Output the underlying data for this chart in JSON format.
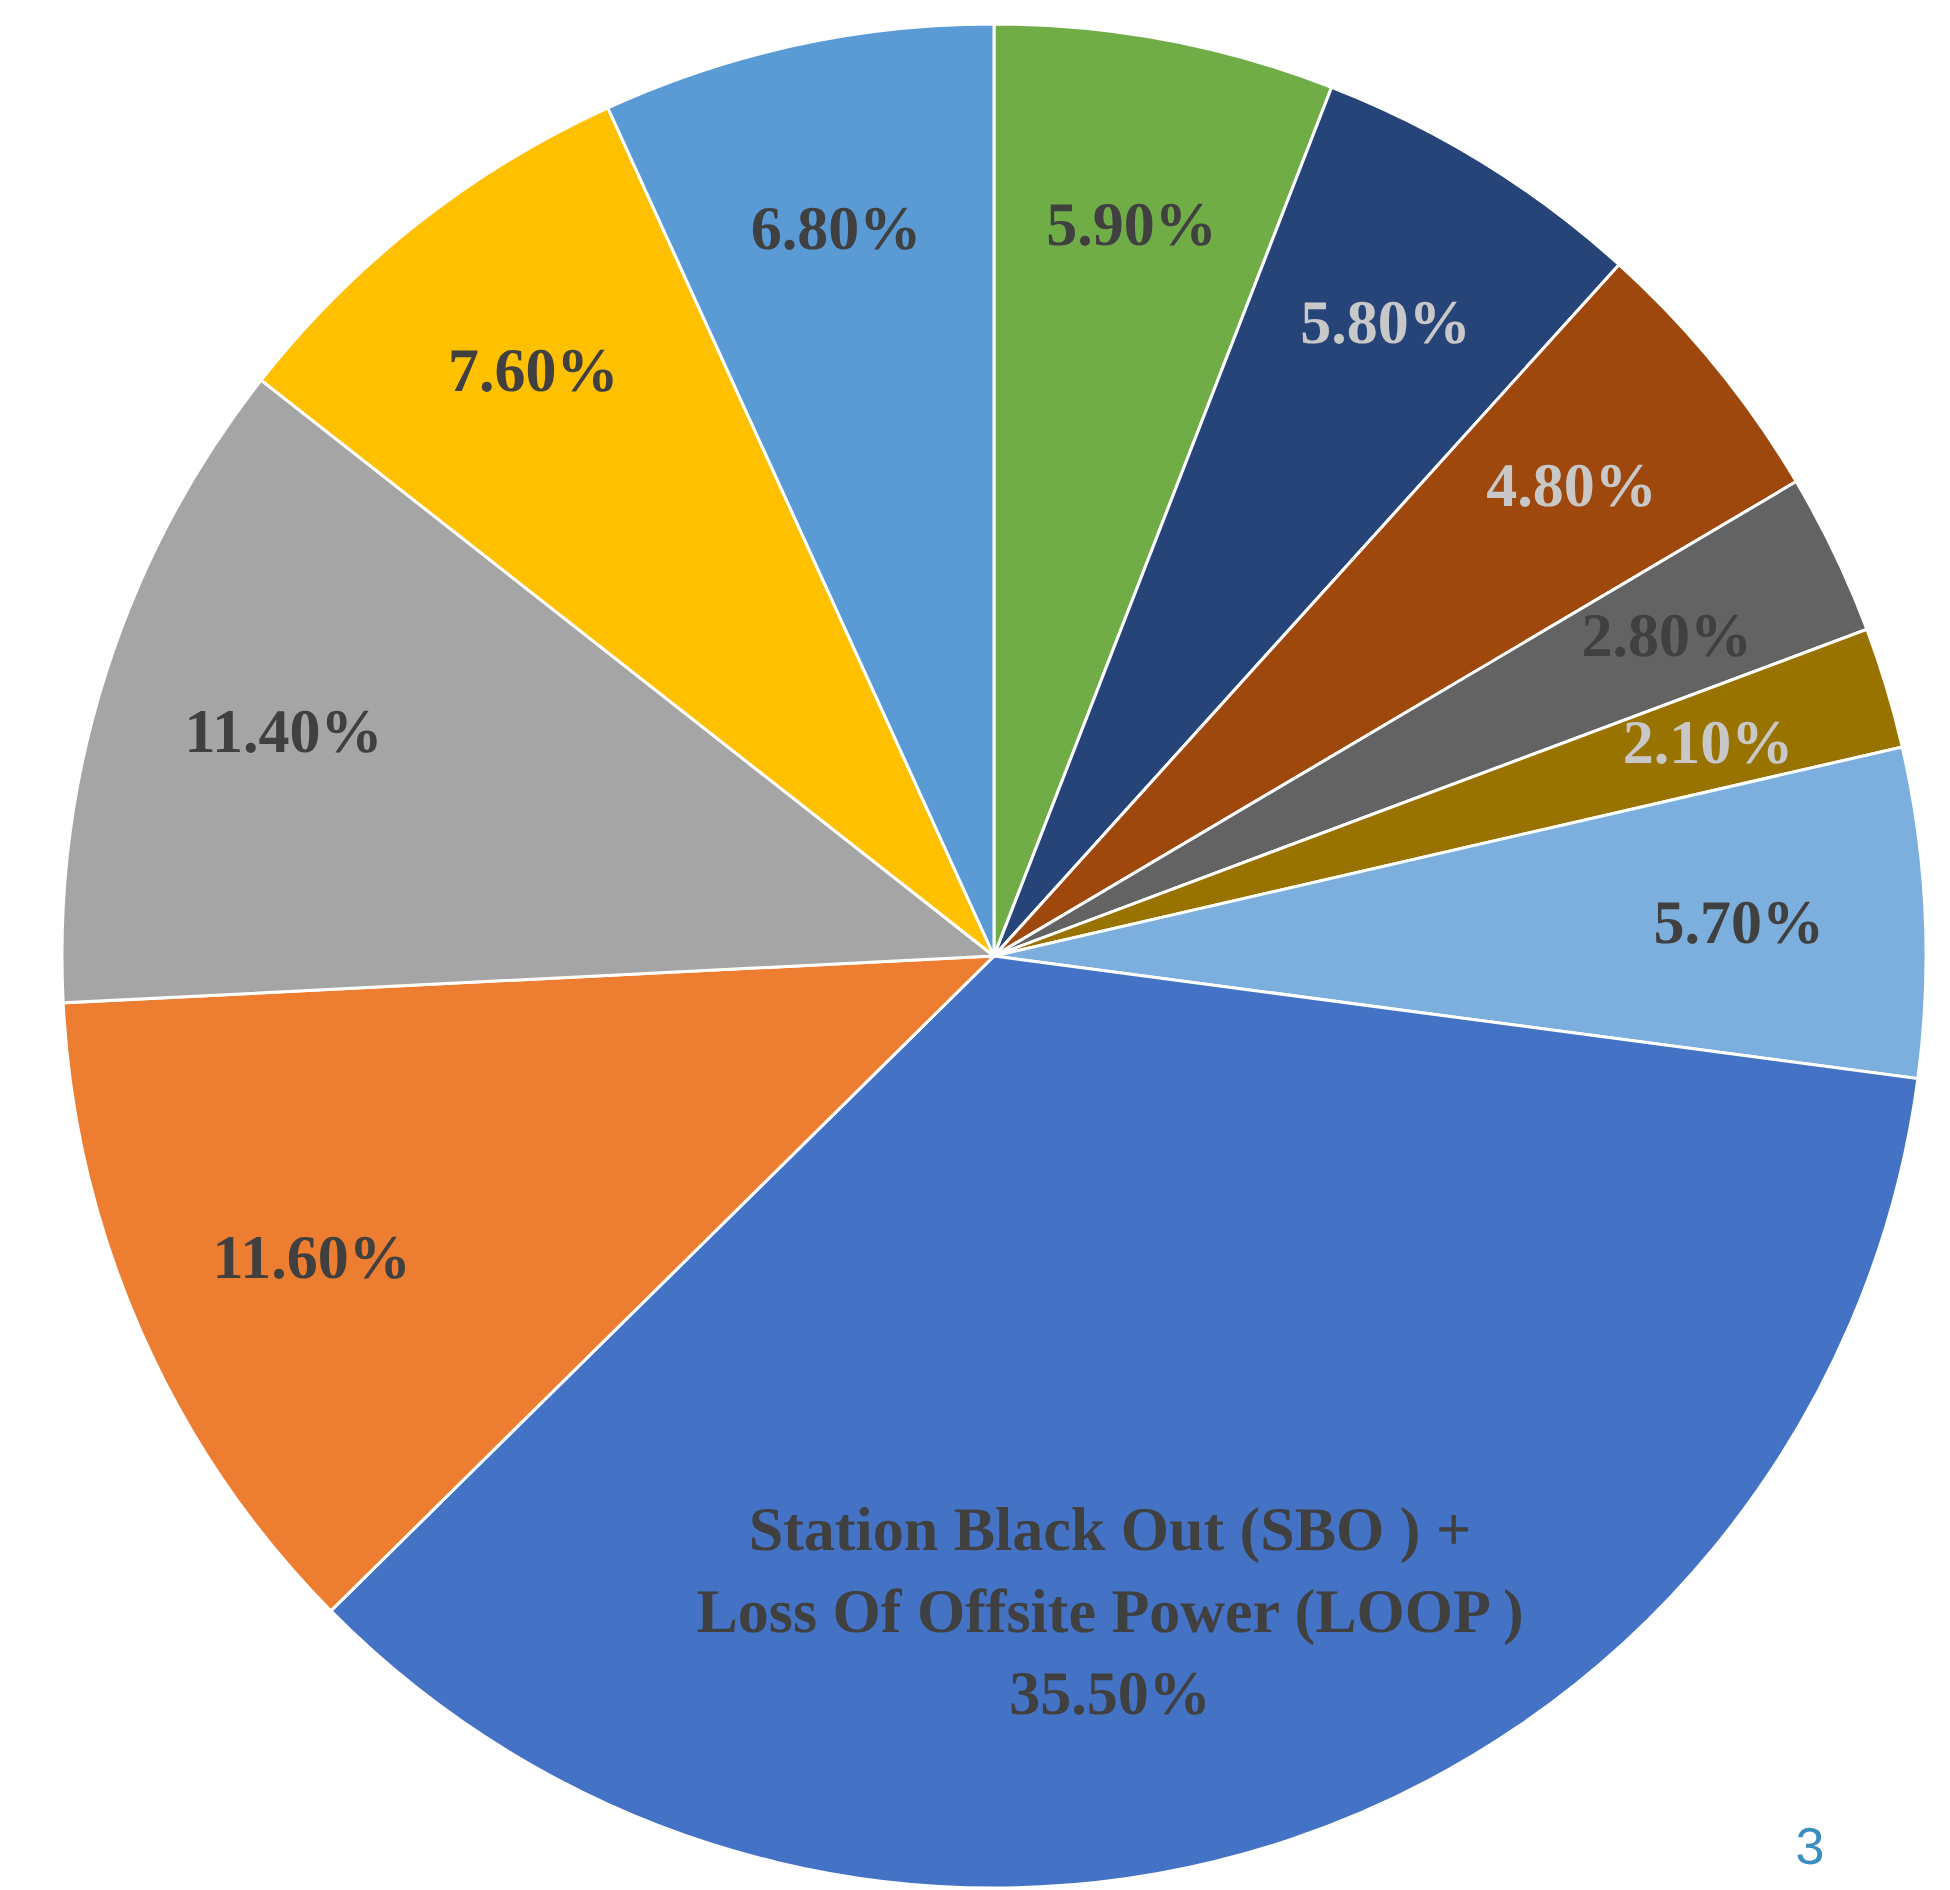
{
  "chart_data": {
    "type": "pie",
    "categories": [
      null,
      null,
      null,
      null,
      null,
      null,
      "Station Black Out (SBO ) + Loss Of Offsite Power (LOOP )",
      null,
      null,
      null,
      null
    ],
    "values": [
      5.9,
      5.8,
      4.8,
      2.8,
      2.1,
      5.7,
      35.5,
      11.6,
      11.4,
      7.6,
      6.8
    ],
    "value_labels": [
      "5.90%",
      "5.80%",
      "4.80%",
      "2.80%",
      "2.10%",
      "5.70%",
      "35.50%",
      "11.60%",
      "11.40%",
      "7.60%",
      "6.80%"
    ],
    "colors": [
      "#70ad47",
      "#264478",
      "#9e480e",
      "#636363",
      "#997300",
      "#7cafdd",
      "#4472c4",
      "#ed7d31",
      "#a5a5a5",
      "#ffc000",
      "#5b9bd5"
    ],
    "annotations": [
      "3"
    ]
  }
}
